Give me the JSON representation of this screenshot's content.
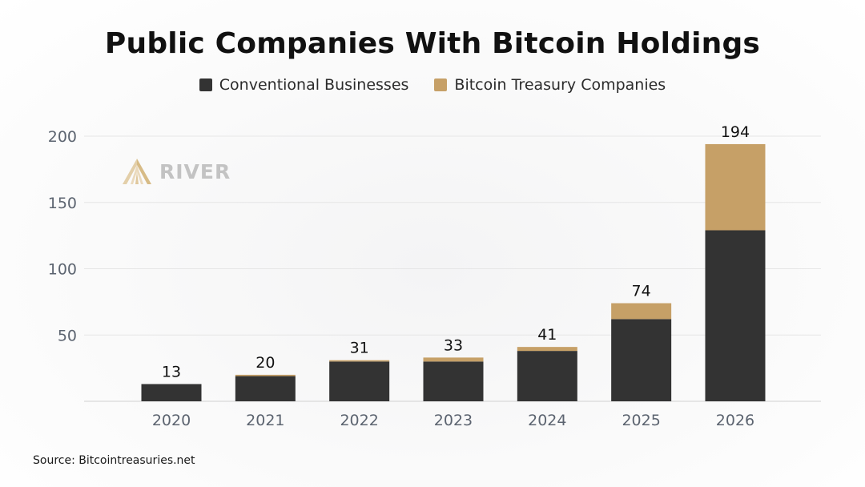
{
  "chart_data": {
    "type": "bar",
    "stacked": true,
    "title": "Public Companies With Bitcoin Holdings",
    "categories": [
      "2020",
      "2021",
      "2022",
      "2023",
      "2024",
      "2025",
      "2026"
    ],
    "series": [
      {
        "name": "Conventional Businesses",
        "color": "#333333",
        "values": [
          13,
          19,
          30,
          30,
          38,
          62,
          129
        ]
      },
      {
        "name": "Bitcoin Treasury Companies",
        "color": "#c6a067",
        "values": [
          0,
          1,
          1,
          3,
          3,
          12,
          65
        ]
      }
    ],
    "totals": [
      "13",
      "20",
      "31",
      "33",
      "41",
      "74",
      "194"
    ],
    "ylim": [
      0,
      200
    ],
    "yticks": [
      "50",
      "100",
      "150",
      "200"
    ],
    "ytick_values": [
      50,
      100,
      150,
      200
    ],
    "grid": true,
    "legend_position": "top-center",
    "xlabel": "",
    "ylabel": ""
  },
  "watermark": {
    "text": "RIVER",
    "icon": "river-logo-icon"
  },
  "source_text": "Source: Bitcointreasuries.net",
  "colors": {
    "background": "#fafafa",
    "grid": "#e6e6e6",
    "axis_text": "#5c6470"
  }
}
